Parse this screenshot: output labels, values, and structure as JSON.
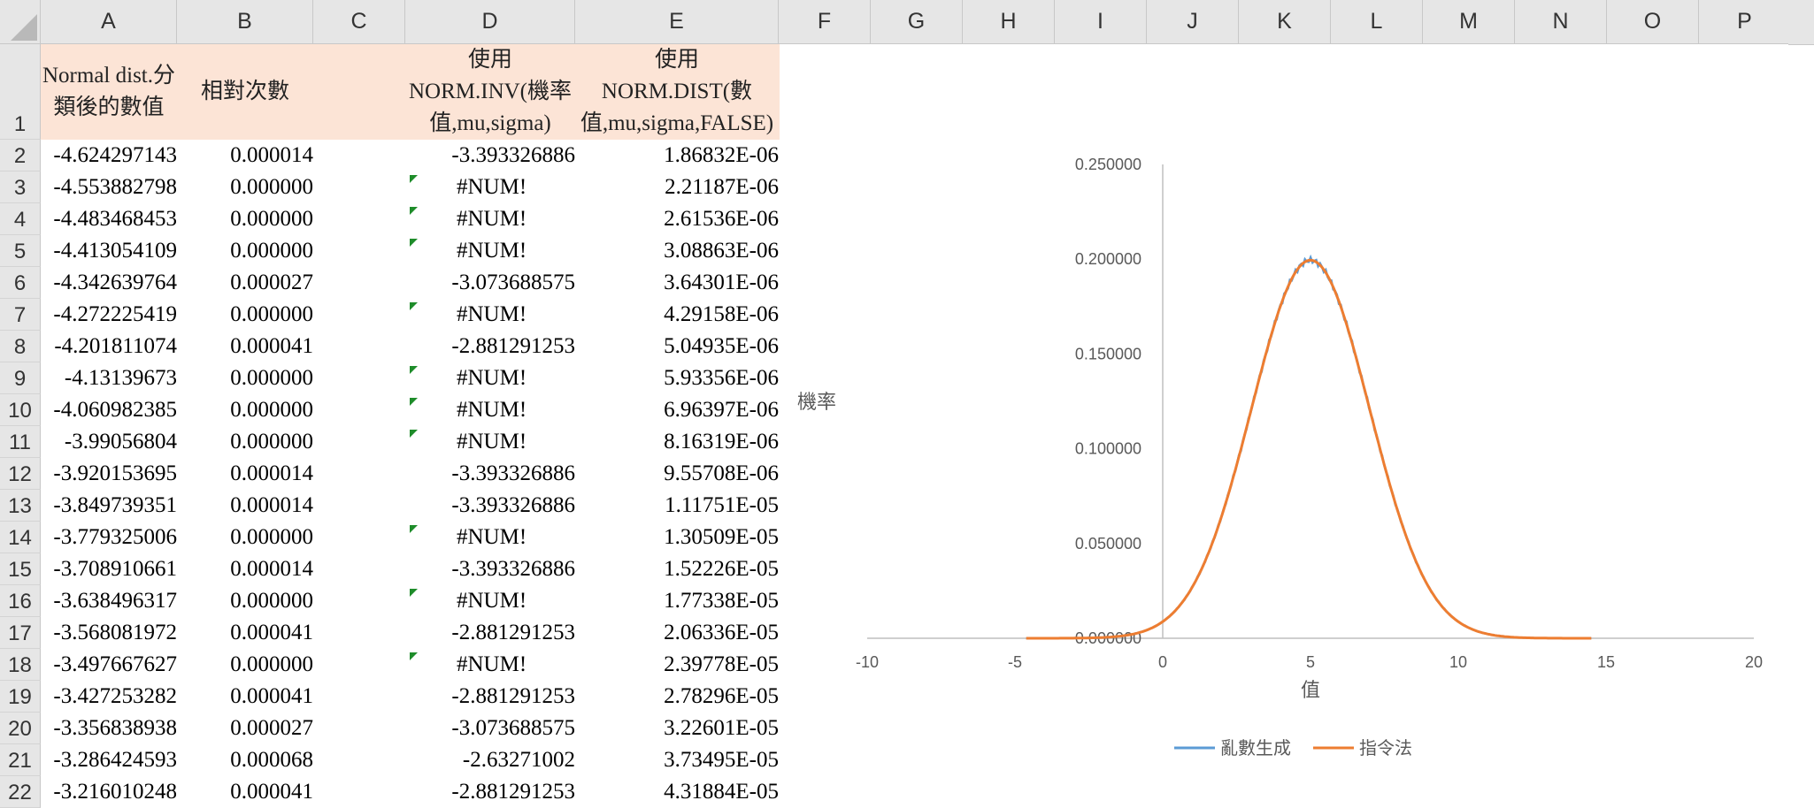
{
  "columns": [
    "A",
    "B",
    "C",
    "D",
    "E",
    "F",
    "G",
    "H",
    "I",
    "J",
    "K",
    "L",
    "M",
    "N",
    "O",
    "P"
  ],
  "row_numbers": [
    "1",
    "2",
    "3",
    "4",
    "5",
    "6",
    "7",
    "8",
    "9",
    "10",
    "11",
    "12",
    "13",
    "14",
    "15",
    "16",
    "17",
    "18",
    "19",
    "20",
    "21",
    "22"
  ],
  "header_row": {
    "a": [
      "Normal dist.分",
      "類後的數值"
    ],
    "b": [
      "相對次數"
    ],
    "d": [
      "使用",
      "NORM.INV(機率",
      "值,mu,sigma)"
    ],
    "e": [
      "使用",
      "NORM.DIST(數",
      "值,mu,sigma,FALSE)"
    ],
    "fill_color": "#fce4d6"
  },
  "rows": [
    {
      "a": "-4.624297143",
      "b": "0.000014",
      "d": "-3.393326886",
      "e": "1.86832E-06",
      "err": false
    },
    {
      "a": "-4.553882798",
      "b": "0.000000",
      "d": "#NUM!",
      "e": "2.21187E-06",
      "err": true
    },
    {
      "a": "-4.483468453",
      "b": "0.000000",
      "d": "#NUM!",
      "e": "2.61536E-06",
      "err": true
    },
    {
      "a": "-4.413054109",
      "b": "0.000000",
      "d": "#NUM!",
      "e": "3.08863E-06",
      "err": true
    },
    {
      "a": "-4.342639764",
      "b": "0.000027",
      "d": "-3.073688575",
      "e": "3.64301E-06",
      "err": false
    },
    {
      "a": "-4.272225419",
      "b": "0.000000",
      "d": "#NUM!",
      "e": "4.29158E-06",
      "err": true
    },
    {
      "a": "-4.201811074",
      "b": "0.000041",
      "d": "-2.881291253",
      "e": "5.04935E-06",
      "err": false
    },
    {
      "a": "-4.13139673",
      "b": "0.000000",
      "d": "#NUM!",
      "e": "5.93356E-06",
      "err": true
    },
    {
      "a": "-4.060982385",
      "b": "0.000000",
      "d": "#NUM!",
      "e": "6.96397E-06",
      "err": true
    },
    {
      "a": "-3.99056804",
      "b": "0.000000",
      "d": "#NUM!",
      "e": "8.16319E-06",
      "err": true
    },
    {
      "a": "-3.920153695",
      "b": "0.000014",
      "d": "-3.393326886",
      "e": "9.55708E-06",
      "err": false
    },
    {
      "a": "-3.849739351",
      "b": "0.000014",
      "d": "-3.393326886",
      "e": "1.11751E-05",
      "err": false
    },
    {
      "a": "-3.779325006",
      "b": "0.000000",
      "d": "#NUM!",
      "e": "1.30509E-05",
      "err": true
    },
    {
      "a": "-3.708910661",
      "b": "0.000014",
      "d": "-3.393326886",
      "e": "1.52226E-05",
      "err": false
    },
    {
      "a": "-3.638496317",
      "b": "0.000000",
      "d": "#NUM!",
      "e": "1.77338E-05",
      "err": true
    },
    {
      "a": "-3.568081972",
      "b": "0.000041",
      "d": "-2.881291253",
      "e": "2.06336E-05",
      "err": false
    },
    {
      "a": "-3.497667627",
      "b": "0.000000",
      "d": "#NUM!",
      "e": "2.39778E-05",
      "err": true
    },
    {
      "a": "-3.427253282",
      "b": "0.000041",
      "d": "-2.881291253",
      "e": "2.78296E-05",
      "err": false
    },
    {
      "a": "-3.356838938",
      "b": "0.000027",
      "d": "-3.073688575",
      "e": "3.22601E-05",
      "err": false
    },
    {
      "a": "-3.286424593",
      "b": "0.000068",
      "d": "-2.63271002",
      "e": "3.73495E-05",
      "err": false
    },
    {
      "a": "-3.216010248",
      "b": "0.000041",
      "d": "-2.881291253",
      "e": "4.31884E-05",
      "err": false
    }
  ],
  "error_flag_color": "#1e8c2a",
  "chart_data": {
    "type": "line",
    "ylabel": "機率",
    "xlabel": "值",
    "xlim": [
      -10,
      20
    ],
    "ylim": [
      0,
      0.25
    ],
    "x_ticks": [
      "-10",
      "-5",
      "0",
      "5",
      "10",
      "15",
      "20"
    ],
    "y_ticks": [
      "0.000000",
      "0.050000",
      "0.100000",
      "0.150000",
      "0.200000",
      "0.250000"
    ],
    "legend_position": "bottom",
    "series": [
      {
        "name": "亂數生成",
        "color": "#5b9bd5",
        "mean": 5,
        "sd": 2,
        "x_range": [
          -4.62,
          14.5
        ]
      },
      {
        "name": "指令法",
        "color": "#ed7d31",
        "mean": 5,
        "sd": 2,
        "x_range": [
          -4.62,
          14.5
        ]
      }
    ]
  }
}
